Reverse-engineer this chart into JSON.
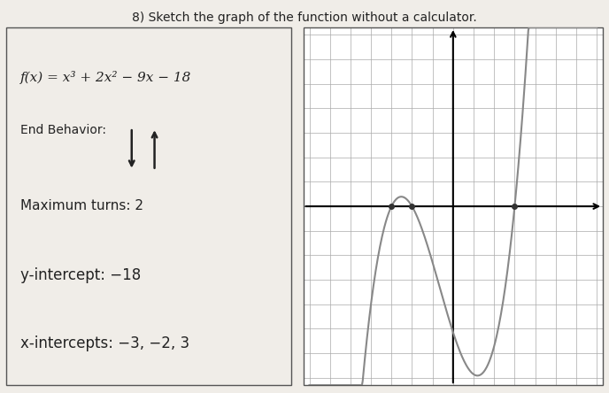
{
  "title": "8) Sketch the graph of the function without a calculator.",
  "function_label": "f(x) = x³ + 2x² − 9x − 18",
  "end_behavior_label": "End Behavior:",
  "max_turns_label": "Maximum turns: 2",
  "y_intercept_label": "y-intercept: −18",
  "x_intercepts_label": "x-intercepts: −3, −2, 3",
  "grid_xlim": [
    -7,
    7
  ],
  "grid_ylim": [
    -7,
    7
  ],
  "curve_color": "#888888",
  "curve_linewidth": 1.5,
  "axis_color": "#000000",
  "grid_color": "#aaaaaa",
  "background_color": "#ffffff",
  "paper_color": "#f0ede8",
  "text_color": "#222222"
}
